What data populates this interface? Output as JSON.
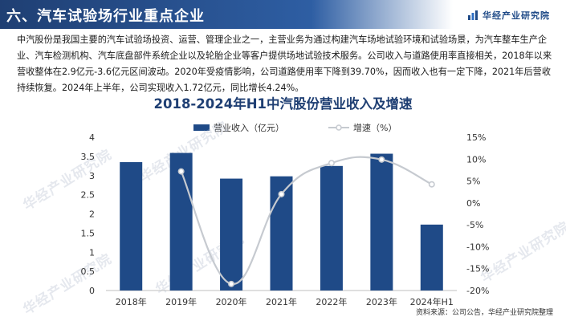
{
  "header": {
    "title": "六、汽车试验场行业重点企业",
    "brand": "华经产业研究院"
  },
  "paragraph": "中汽股份是我国主要的汽车试验场投资、运营、管理企业之一，主营业务为通过构建汽车场地试验环境和试验场景，为汽车整车生产企业、汽车检测机构、汽车底盘部件系统企业以及轮胎企业等客户提供场地试验技术服务。公司收入与道路使用率直接相关，2018年以来营收整体在2.9亿元-3.6亿元区间波动。2020年受疫情影响，公司道路使用率下降到39.70%，因而收入也有一定下降，2021年后营收持续恢复。2024年上半年，公司实现收入1.72亿元，同比增长4.24%。",
  "watermark": "华经产业研究院",
  "source": "资料来源：公司公告，华经产业研究院整理",
  "chart_data": {
    "type": "bar",
    "title": "2018-2024年H1中汽股份营业收入及增速",
    "categories": [
      "2018年",
      "2019年",
      "2020年",
      "2021年",
      "2022年",
      "2023年",
      "2024年H1"
    ],
    "series": [
      {
        "name": "营业收入（亿元）",
        "type": "bar",
        "axis": "left",
        "color": "#1f4a87",
        "values": [
          3.35,
          3.59,
          2.92,
          2.98,
          3.25,
          3.57,
          1.72
        ]
      },
      {
        "name": "增速（%）",
        "type": "line",
        "axis": "right",
        "color": "#c6cad0",
        "values": [
          null,
          7.2,
          -18.5,
          2.0,
          9.1,
          9.9,
          4.24
        ]
      }
    ],
    "y_left": {
      "range": [
        0,
        4
      ],
      "ticks": [
        "0",
        "0.5",
        "1",
        "1.5",
        "2",
        "2.5",
        "3",
        "3.5",
        "4"
      ]
    },
    "y_right": {
      "range": [
        -20,
        15
      ],
      "ticks": [
        "-20%",
        "-15%",
        "-10%",
        "-5%",
        "0%",
        "5%",
        "10%",
        "15%"
      ]
    },
    "grid": false,
    "legend_position": "top"
  }
}
